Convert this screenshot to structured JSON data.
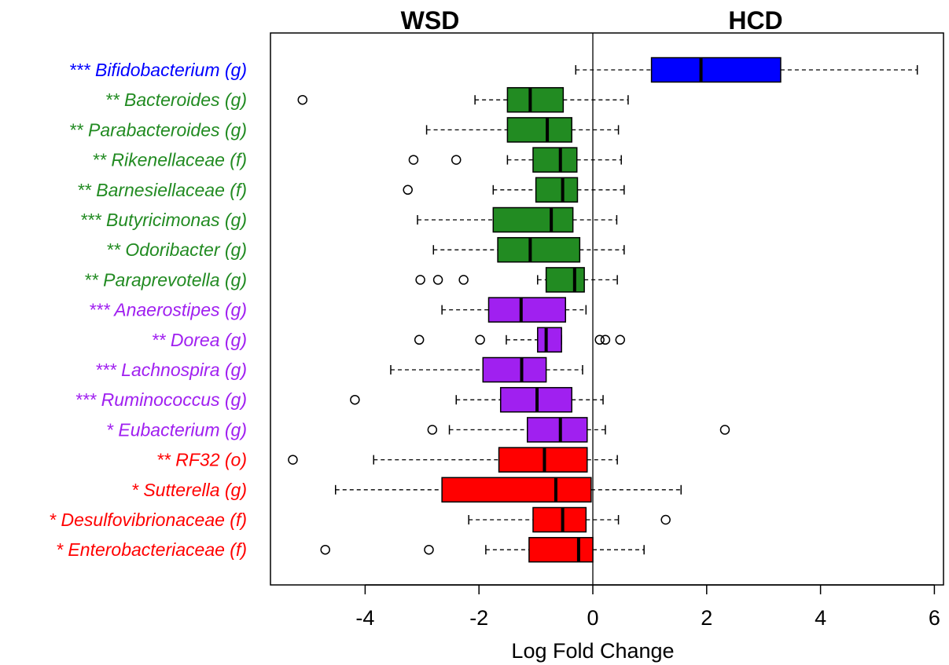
{
  "chart_data": {
    "type": "boxplot",
    "xlabel": "Log Fold Change",
    "xlim": [
      -5.65,
      6.0
    ],
    "xticks": [
      -4,
      -2,
      0,
      2,
      4,
      6
    ],
    "xtick_labels": [
      "-4",
      "-2",
      "0",
      "2",
      "4",
      "6"
    ],
    "left_title": "WSD",
    "right_title": "HCD",
    "zero_line": 0,
    "categories": [
      {
        "label": "*** Bifidobacterium (g)",
        "color": "#0000ff",
        "whisker_low": -0.3,
        "q1": 1.03,
        "median": 1.9,
        "q3": 3.3,
        "whisker_high": 5.7,
        "outliers": []
      },
      {
        "label": "** Bacteroides (g)",
        "color": "#228b22",
        "whisker_low": -2.07,
        "q1": -1.5,
        "median": -1.1,
        "q3": -0.52,
        "whisker_high": 0.62,
        "outliers": [
          -5.1
        ]
      },
      {
        "label": "** Parabacteroides (g)",
        "color": "#228b22",
        "whisker_low": -2.92,
        "q1": -1.5,
        "median": -0.8,
        "q3": -0.37,
        "whisker_high": 0.45,
        "outliers": []
      },
      {
        "label": "** Rikenellaceae (f)",
        "color": "#228b22",
        "whisker_low": -1.5,
        "q1": -1.05,
        "median": -0.57,
        "q3": -0.28,
        "whisker_high": 0.5,
        "outliers": [
          -3.15,
          -2.4
        ]
      },
      {
        "label": "** Barnesiellaceae (f)",
        "color": "#228b22",
        "whisker_low": -1.75,
        "q1": -1.0,
        "median": -0.53,
        "q3": -0.27,
        "whisker_high": 0.55,
        "outliers": [
          -3.25
        ]
      },
      {
        "label": "*** Butyricimonas (g)",
        "color": "#228b22",
        "whisker_low": -3.08,
        "q1": -1.75,
        "median": -0.73,
        "q3": -0.35,
        "whisker_high": 0.42,
        "outliers": []
      },
      {
        "label": "** Odoribacter (g)",
        "color": "#228b22",
        "whisker_low": -2.8,
        "q1": -1.67,
        "median": -1.1,
        "q3": -0.23,
        "whisker_high": 0.55,
        "outliers": []
      },
      {
        "label": "** Paraprevotella (g)",
        "color": "#228b22",
        "whisker_low": -0.97,
        "q1": -0.82,
        "median": -0.32,
        "q3": -0.15,
        "whisker_high": 0.43,
        "outliers": [
          -3.03,
          -2.72,
          -2.27
        ]
      },
      {
        "label": "*** Anaerostipes (g)",
        "color": "#a020f0",
        "whisker_low": -2.65,
        "q1": -1.83,
        "median": -1.26,
        "q3": -0.48,
        "whisker_high": -0.12,
        "outliers": []
      },
      {
        "label": "** Dorea (g)",
        "color": "#a020f0",
        "whisker_low": -1.52,
        "q1": -0.97,
        "median": -0.82,
        "q3": -0.55,
        "whisker_high": -0.55,
        "outliers": [
          -3.05,
          -1.98,
          0.12,
          0.22,
          0.48
        ]
      },
      {
        "label": "*** Lachnospira (g)",
        "color": "#a020f0",
        "whisker_low": -3.55,
        "q1": -1.93,
        "median": -1.25,
        "q3": -0.82,
        "whisker_high": -0.18,
        "outliers": []
      },
      {
        "label": "*** Ruminococcus (g)",
        "color": "#a020f0",
        "whisker_low": -2.4,
        "q1": -1.62,
        "median": -0.98,
        "q3": -0.37,
        "whisker_high": 0.18,
        "outliers": [
          -4.18
        ]
      },
      {
        "label": "* Eubacterium (g)",
        "color": "#a020f0",
        "whisker_low": -2.52,
        "q1": -1.15,
        "median": -0.57,
        "q3": -0.1,
        "whisker_high": 0.22,
        "outliers": [
          -2.82,
          2.32
        ]
      },
      {
        "label": "** RF32 (o)",
        "color": "#ff0000",
        "whisker_low": -3.85,
        "q1": -1.65,
        "median": -0.85,
        "q3": -0.1,
        "whisker_high": 0.43,
        "outliers": [
          -5.27
        ]
      },
      {
        "label": "* Sutterella (g)",
        "color": "#ff0000",
        "whisker_low": -4.52,
        "q1": -2.65,
        "median": -0.65,
        "q3": -0.03,
        "whisker_high": 1.55,
        "outliers": []
      },
      {
        "label": "* Desulfovibrionaceae (f)",
        "color": "#ff0000",
        "whisker_low": -2.18,
        "q1": -1.05,
        "median": -0.53,
        "q3": -0.12,
        "whisker_high": 0.45,
        "outliers": [
          1.28
        ]
      },
      {
        "label": "* Enterobacteriaceae (f)",
        "color": "#ff0000",
        "whisker_low": -1.88,
        "q1": -1.12,
        "median": -0.25,
        "q3": 0.0,
        "whisker_high": 0.9,
        "outliers": [
          -4.7,
          -2.88
        ]
      }
    ]
  }
}
